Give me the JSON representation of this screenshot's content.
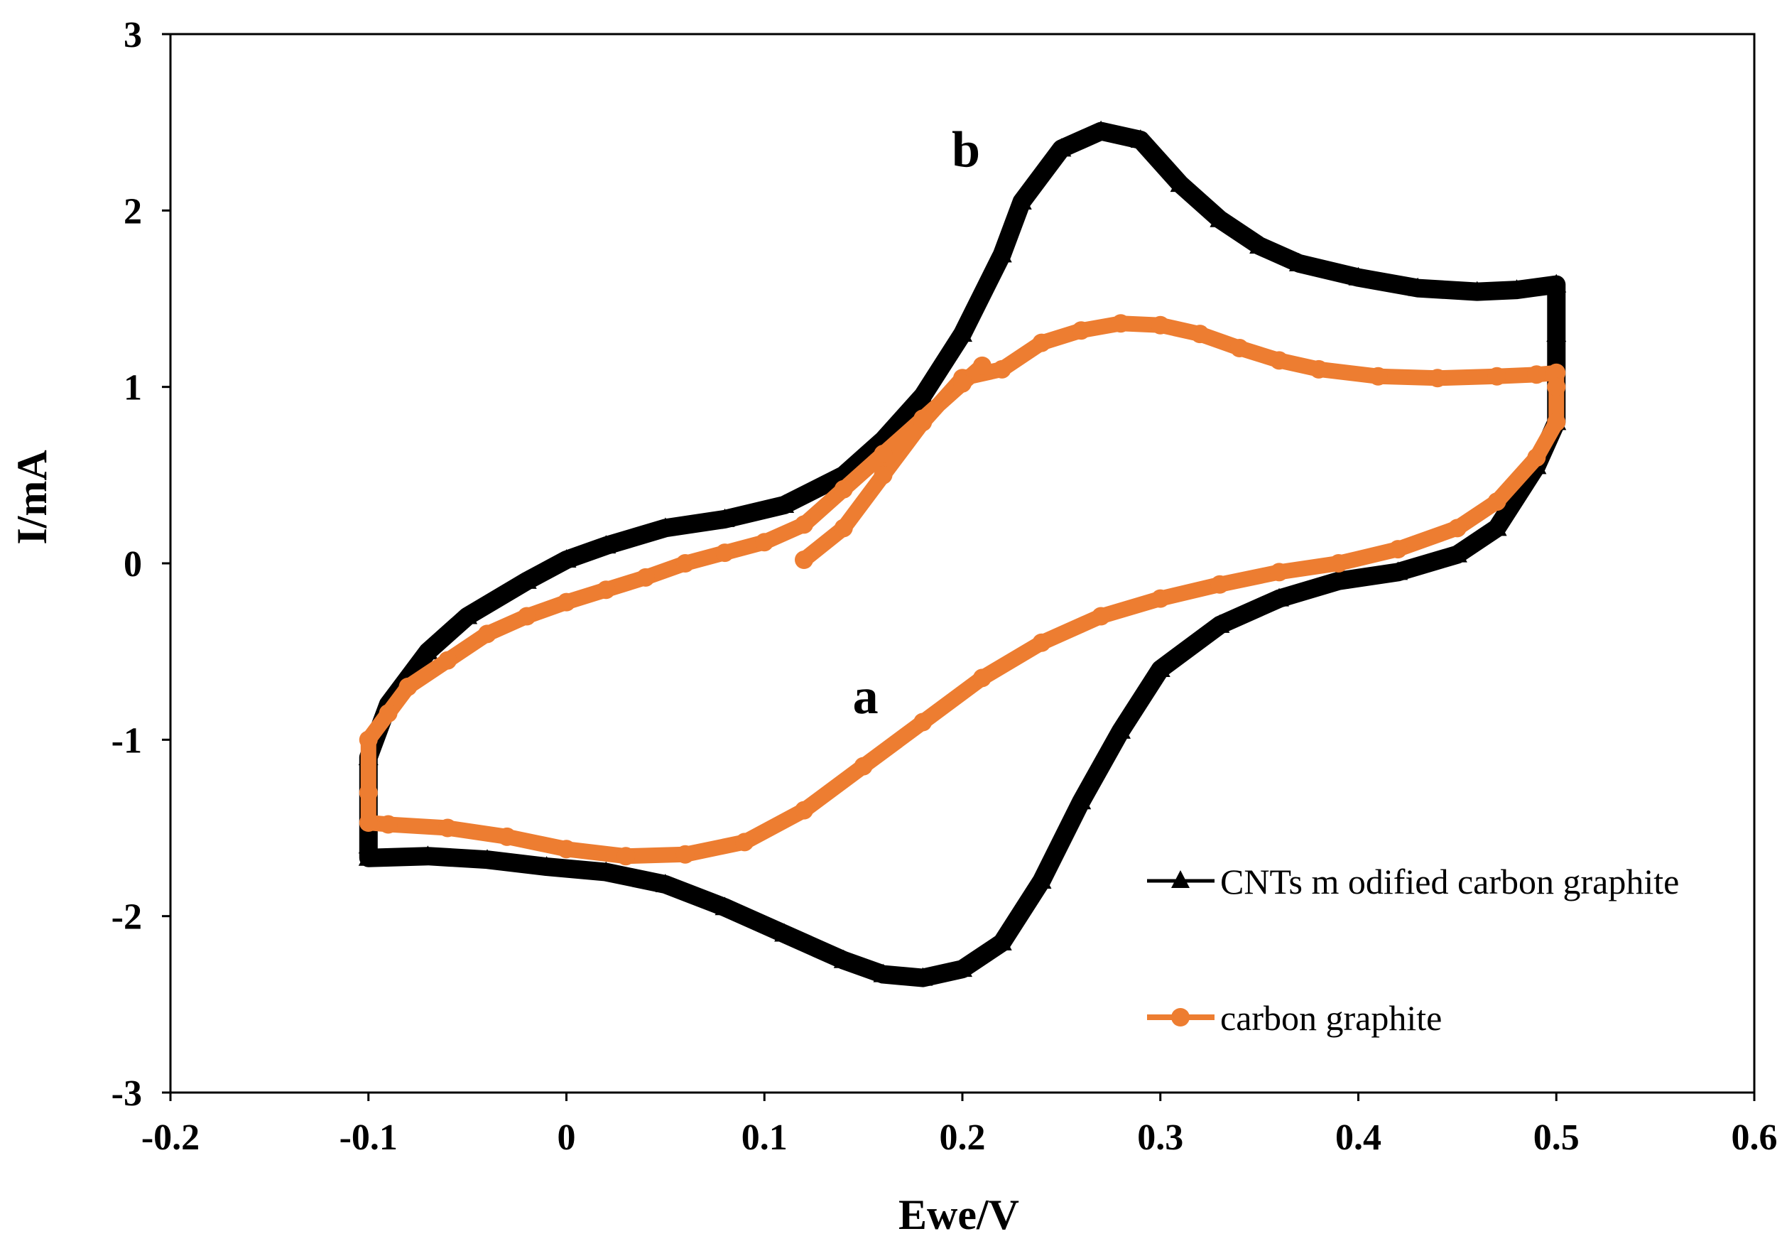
{
  "chart_data": {
    "type": "scatter",
    "xlabel": "Ewe/V",
    "ylabel": "I/mA",
    "xlim": [
      -0.2,
      0.6
    ],
    "ylim": [
      -3,
      3
    ],
    "x_ticks": [
      "-0.2",
      "-0.1",
      "0",
      "0.1",
      "0.2",
      "0.3",
      "0.4",
      "0.5",
      "0.6"
    ],
    "y_ticks": [
      "3",
      "2",
      "1",
      "0",
      "-1",
      "-2",
      "-3"
    ],
    "grid": false,
    "legend_position": "bottom-right",
    "annotations": [
      {
        "text": "b",
        "x": 0.2,
        "y": 2.25
      },
      {
        "text": "a",
        "x": 0.15,
        "y": -0.85
      }
    ],
    "series": [
      {
        "name": "CNTs m odified carbon graphite",
        "color": "#000000",
        "marker": "triangle",
        "points": [
          [
            0.23,
            2.05
          ],
          [
            0.25,
            2.35
          ],
          [
            0.27,
            2.45
          ],
          [
            0.29,
            2.4
          ],
          [
            0.31,
            2.15
          ],
          [
            0.33,
            1.95
          ],
          [
            0.35,
            1.8
          ],
          [
            0.37,
            1.7
          ],
          [
            0.4,
            1.62
          ],
          [
            0.43,
            1.56
          ],
          [
            0.46,
            1.54
          ],
          [
            0.48,
            1.55
          ],
          [
            0.5,
            1.58
          ],
          [
            0.5,
            1.3
          ],
          [
            0.5,
            0.8
          ],
          [
            0.49,
            0.55
          ],
          [
            0.47,
            0.2
          ],
          [
            0.45,
            0.05
          ],
          [
            0.42,
            -0.05
          ],
          [
            0.39,
            -0.1
          ],
          [
            0.36,
            -0.2
          ],
          [
            0.33,
            -0.35
          ],
          [
            0.3,
            -0.6
          ],
          [
            0.28,
            -0.95
          ],
          [
            0.26,
            -1.35
          ],
          [
            0.24,
            -1.8
          ],
          [
            0.22,
            -2.15
          ],
          [
            0.2,
            -2.3
          ],
          [
            0.18,
            -2.35
          ],
          [
            0.16,
            -2.33
          ],
          [
            0.14,
            -2.25
          ],
          [
            0.11,
            -2.1
          ],
          [
            0.08,
            -1.95
          ],
          [
            0.05,
            -1.82
          ],
          [
            0.02,
            -1.75
          ],
          [
            -0.01,
            -1.72
          ],
          [
            -0.04,
            -1.68
          ],
          [
            -0.07,
            -1.66
          ],
          [
            -0.1,
            -1.67
          ],
          [
            -0.1,
            -1.6
          ],
          [
            -0.1,
            -1.1
          ],
          [
            -0.09,
            -0.8
          ],
          [
            -0.07,
            -0.5
          ],
          [
            -0.05,
            -0.3
          ],
          [
            -0.02,
            -0.1
          ],
          [
            0.0,
            0.02
          ],
          [
            0.02,
            0.1
          ],
          [
            0.05,
            0.2
          ],
          [
            0.08,
            0.25
          ],
          [
            0.11,
            0.33
          ],
          [
            0.14,
            0.5
          ],
          [
            0.16,
            0.7
          ],
          [
            0.18,
            0.95
          ],
          [
            0.2,
            1.3
          ],
          [
            0.22,
            1.75
          ],
          [
            0.23,
            2.05
          ]
        ]
      },
      {
        "name": "carbon graphite",
        "color": "#ED7D31",
        "marker": "circle",
        "points": [
          [
            0.12,
            0.02
          ],
          [
            0.14,
            0.2
          ],
          [
            0.16,
            0.5
          ],
          [
            0.18,
            0.8
          ],
          [
            0.2,
            1.05
          ],
          [
            0.22,
            1.1
          ],
          [
            0.24,
            1.25
          ],
          [
            0.26,
            1.32
          ],
          [
            0.28,
            1.36
          ],
          [
            0.3,
            1.35
          ],
          [
            0.32,
            1.3
          ],
          [
            0.34,
            1.22
          ],
          [
            0.36,
            1.15
          ],
          [
            0.38,
            1.1
          ],
          [
            0.41,
            1.06
          ],
          [
            0.44,
            1.05
          ],
          [
            0.47,
            1.06
          ],
          [
            0.49,
            1.07
          ],
          [
            0.5,
            1.08
          ],
          [
            0.5,
            1.0
          ],
          [
            0.5,
            0.8
          ],
          [
            0.49,
            0.6
          ],
          [
            0.47,
            0.35
          ],
          [
            0.45,
            0.2
          ],
          [
            0.42,
            0.08
          ],
          [
            0.39,
            0.0
          ],
          [
            0.36,
            -0.05
          ],
          [
            0.33,
            -0.12
          ],
          [
            0.3,
            -0.2
          ],
          [
            0.27,
            -0.3
          ],
          [
            0.24,
            -0.45
          ],
          [
            0.21,
            -0.65
          ],
          [
            0.18,
            -0.9
          ],
          [
            0.15,
            -1.15
          ],
          [
            0.12,
            -1.4
          ],
          [
            0.09,
            -1.58
          ],
          [
            0.06,
            -1.65
          ],
          [
            0.03,
            -1.66
          ],
          [
            0.0,
            -1.62
          ],
          [
            -0.03,
            -1.55
          ],
          [
            -0.06,
            -1.5
          ],
          [
            -0.09,
            -1.48
          ],
          [
            -0.1,
            -1.47
          ],
          [
            -0.1,
            -1.3
          ],
          [
            -0.1,
            -1.0
          ],
          [
            -0.09,
            -0.85
          ],
          [
            -0.08,
            -0.7
          ],
          [
            -0.06,
            -0.55
          ],
          [
            -0.04,
            -0.4
          ],
          [
            -0.02,
            -0.3
          ],
          [
            0.0,
            -0.22
          ],
          [
            0.02,
            -0.15
          ],
          [
            0.04,
            -0.08
          ],
          [
            0.06,
            0.0
          ],
          [
            0.08,
            0.06
          ],
          [
            0.1,
            0.12
          ],
          [
            0.12,
            0.22
          ],
          [
            0.14,
            0.42
          ],
          [
            0.16,
            0.62
          ],
          [
            0.18,
            0.82
          ],
          [
            0.2,
            1.02
          ],
          [
            0.21,
            1.12
          ]
        ]
      }
    ]
  }
}
